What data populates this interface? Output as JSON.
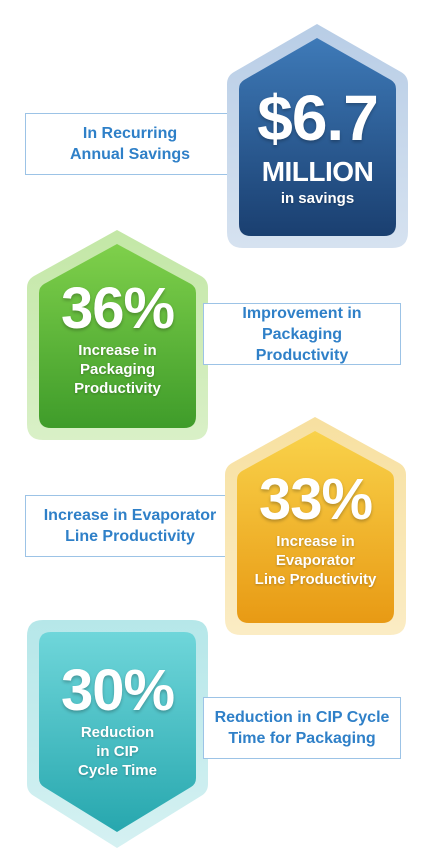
{
  "stats": [
    {
      "value": "$6.7",
      "unit": "MILLION",
      "sub": "in savings",
      "label": "In Recurring Annual Savings",
      "color": "#1f4f86"
    },
    {
      "value": "36%",
      "sub_line1": "Increase in",
      "sub_line2": "Packaging",
      "sub_line3": "Productivity",
      "label": "Improvement in Packaging Productivity",
      "color": "#5cb43a"
    },
    {
      "value": "33%",
      "sub_line1": "Increase in",
      "sub_line2": "Evaporator",
      "sub_line3": "Line Productivity",
      "label": "Increase in Evaporator Line Productivity",
      "color": "#f0b21c"
    },
    {
      "value": "30%",
      "sub_line1": "Reduction",
      "sub_line2": "in CIP",
      "sub_line3": "Cycle Time",
      "label": "Reduction in CIP Cycle Time for Packaging",
      "color": "#42c1c6"
    }
  ]
}
